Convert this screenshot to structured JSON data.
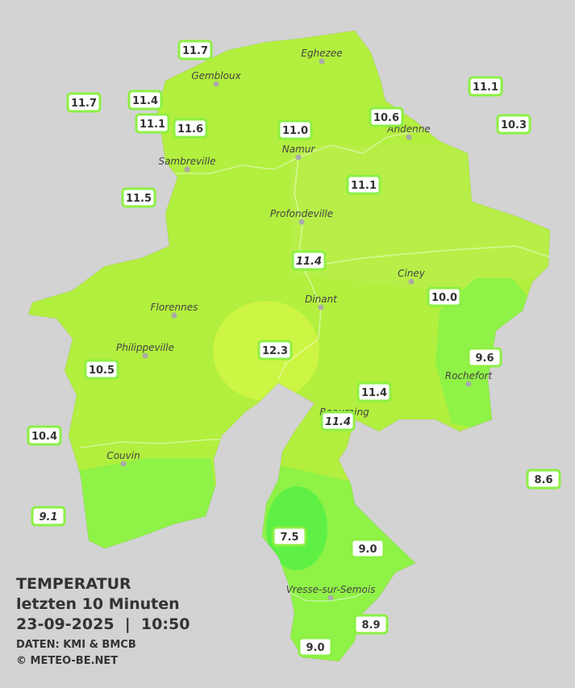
{
  "legend": {
    "title": "TEMPERATUR",
    "subtitle": "letzten 10 Minuten",
    "datetime": "23-09-2025  |  10:50",
    "source": "DATEN: KMI & BMCB",
    "credit": "© METEO-BE.NET"
  },
  "towns": [
    "Eghezee",
    "Gembloux",
    "Andenne",
    "Namur",
    "Sambreville",
    "Profondeville",
    "Ciney",
    "Dinant",
    "Florennes",
    "Philippeville",
    "Rochefort",
    "Beauraing",
    "Couvin",
    "Vresse-sur-Semois"
  ],
  "stations": [
    "11.7",
    "11.7",
    "11.4",
    "11.1",
    "11.6",
    "11.0",
    "10.6",
    "11.1",
    "10.3",
    "11.5",
    "11.1",
    "11.4",
    "10.0",
    "12.3",
    "9.6",
    "10.5",
    "11.4",
    "11.4",
    "10.4",
    "8.6",
    "9.1",
    "7.5",
    "9.0",
    "8.9",
    "9.0"
  ]
}
